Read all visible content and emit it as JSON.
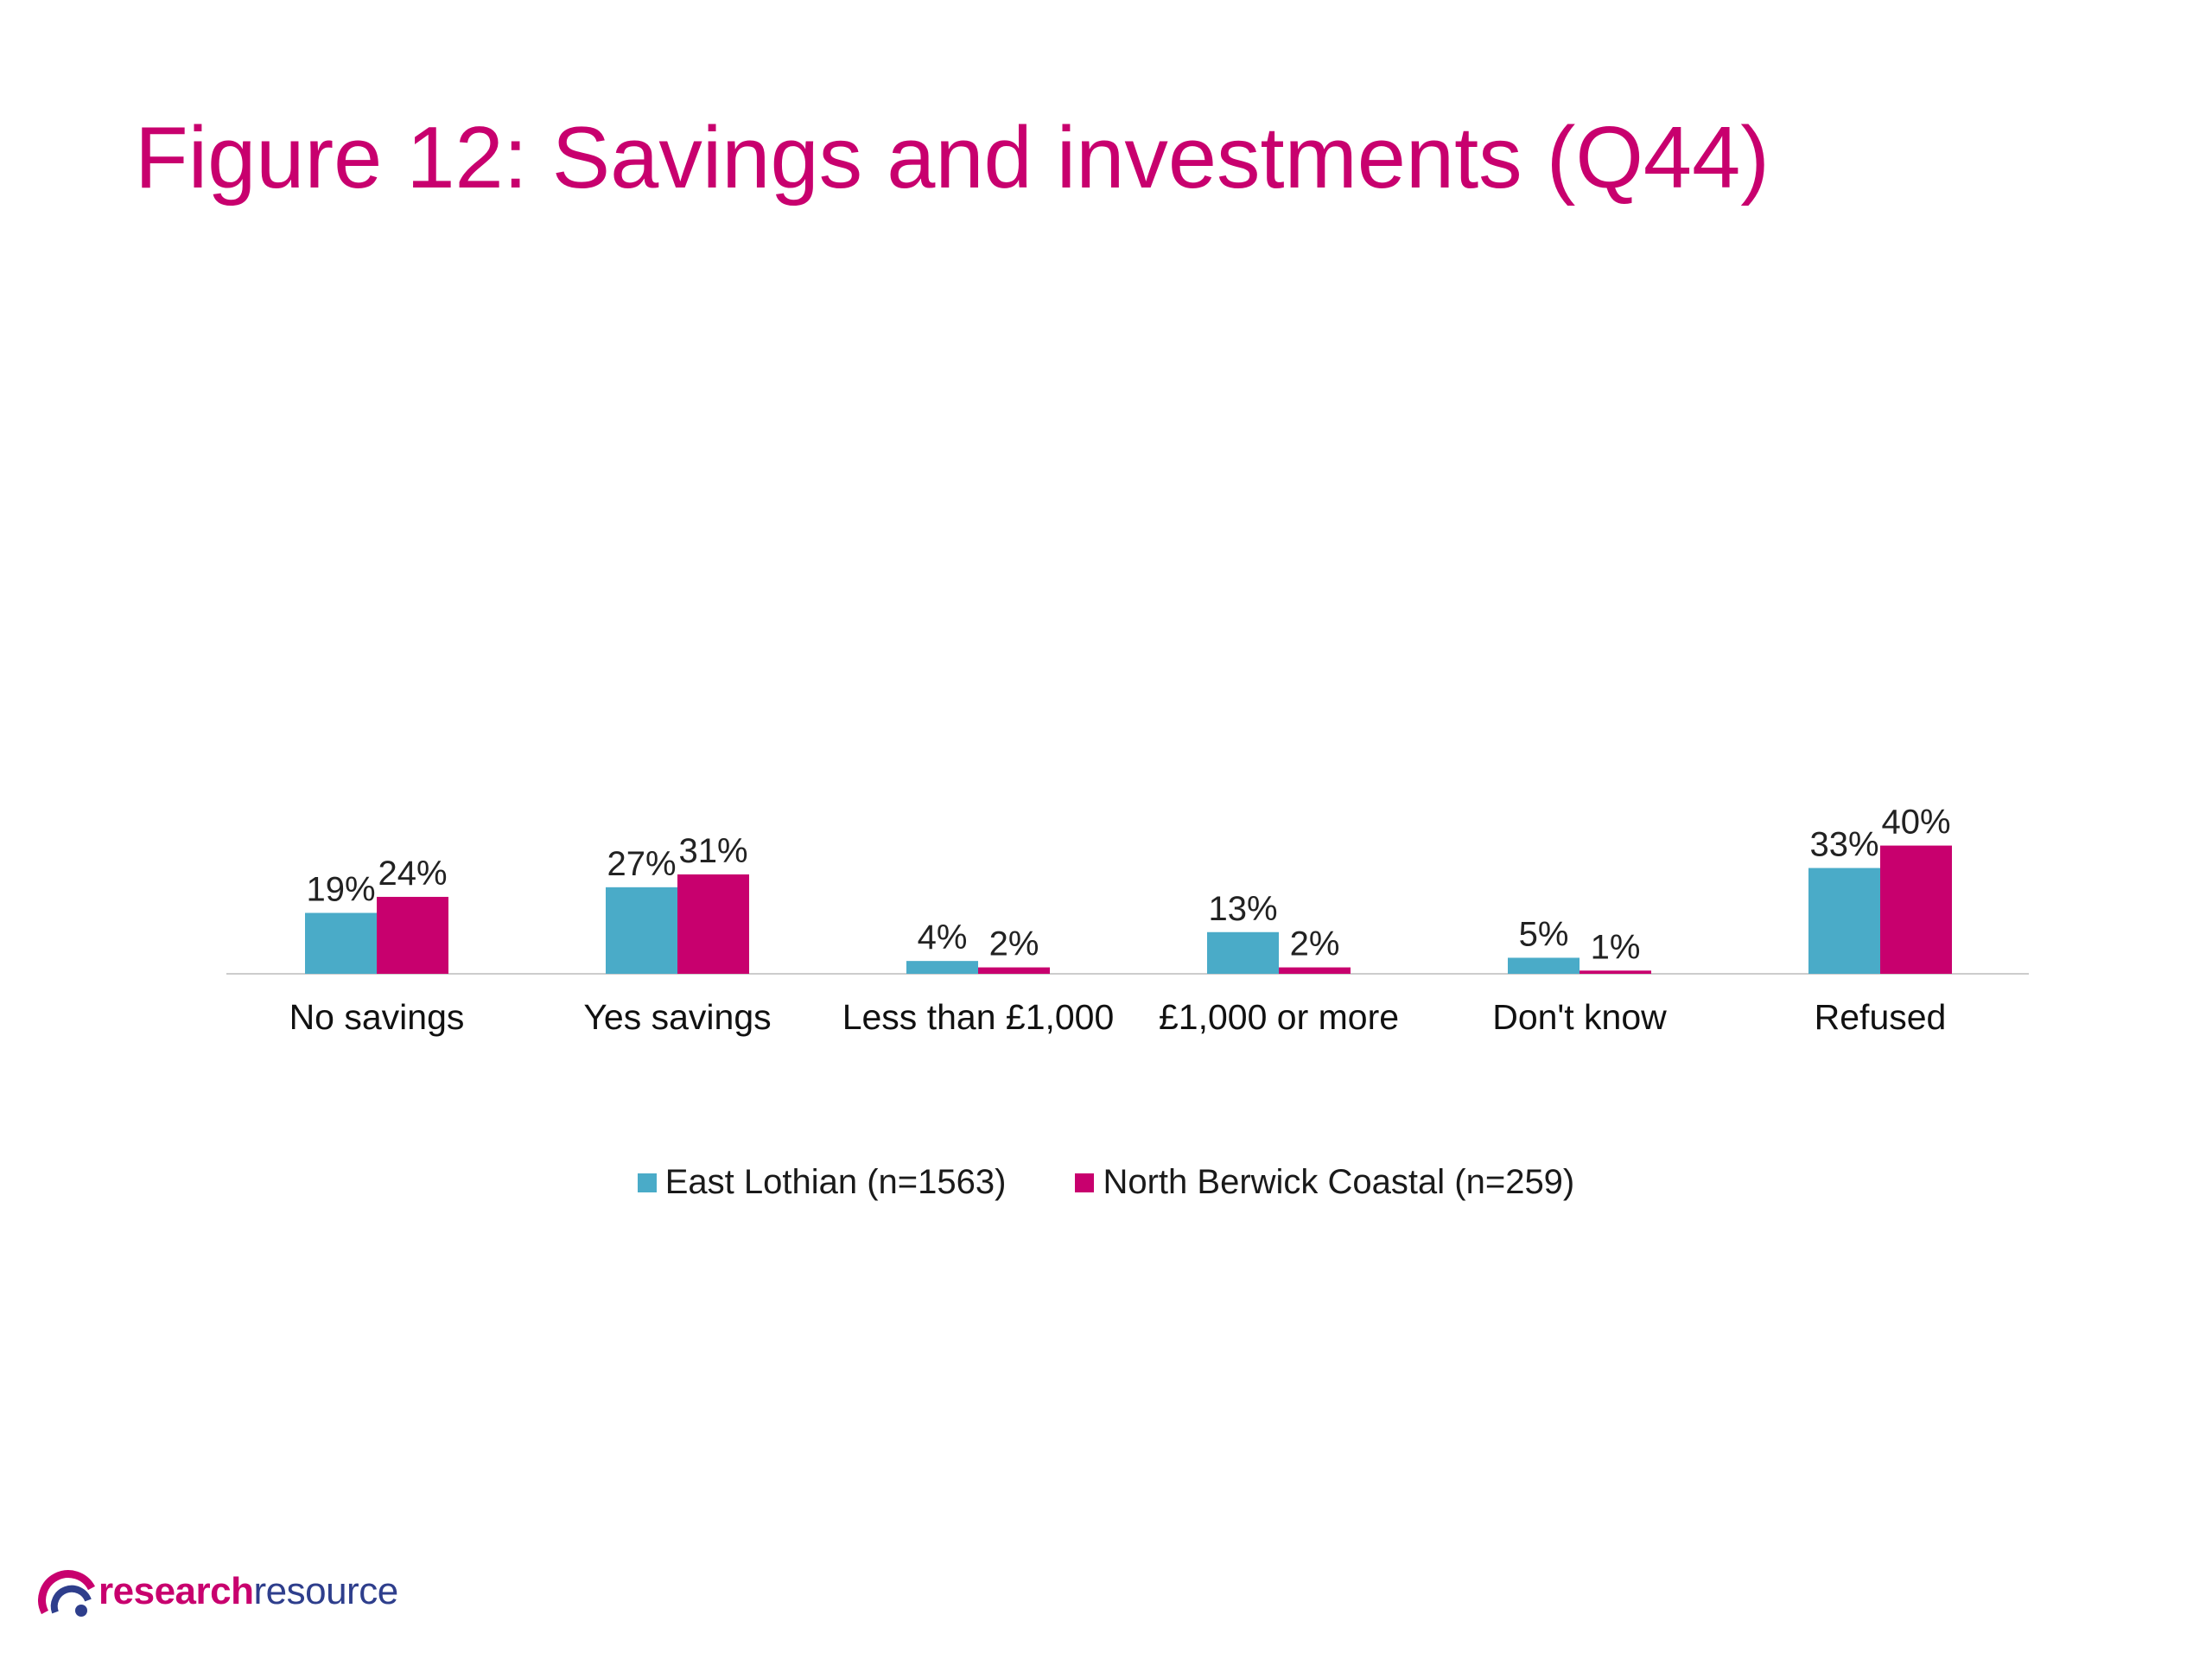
{
  "title": "Figure 12: Savings and investments (Q44)",
  "colors": {
    "title": "#c8006e",
    "series1": "#4aabc8",
    "series2": "#c8006e",
    "axis": "#cccccc"
  },
  "chart_data": {
    "type": "bar",
    "categories": [
      "No savings",
      "Yes savings",
      "Less than £1,000",
      "£1,000 or more",
      "Don't know",
      "Refused"
    ],
    "series": [
      {
        "name": "East Lothian (n=1563)",
        "values": [
          19,
          27,
          4,
          13,
          5,
          33
        ],
        "labels": [
          "19%",
          "27%",
          "4%",
          "13%",
          "5%",
          "33%"
        ]
      },
      {
        "name": "North Berwick Coastal (n=259)",
        "values": [
          24,
          31,
          2,
          2,
          1,
          40
        ],
        "labels": [
          "24%",
          "31%",
          "2%",
          "2%",
          "1%",
          "40%"
        ]
      }
    ],
    "legend": "bottom",
    "grid": false
  },
  "logo": {
    "part1": "research",
    "part2": "resource",
    "icon": "logo-arc-icon"
  }
}
